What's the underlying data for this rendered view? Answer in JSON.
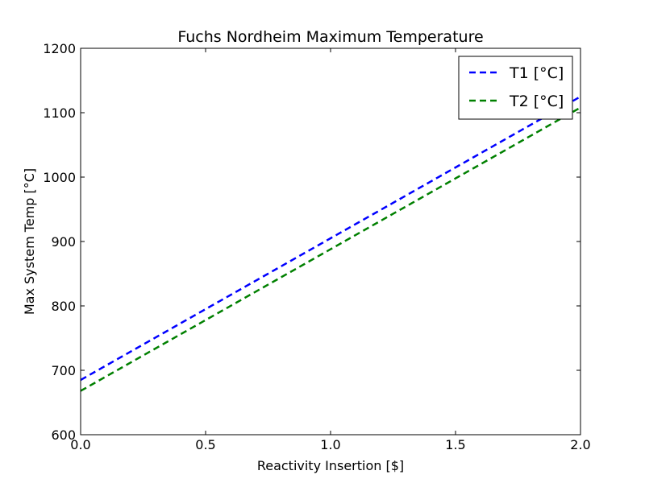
{
  "chart_data": {
    "type": "line",
    "title": "Fuchs Nordheim Maximum Temperature",
    "xlabel": "Reactivity Insertion [$]",
    "ylabel": "Max System Temp [°C]",
    "xlim": [
      0.0,
      2.0
    ],
    "ylim": [
      600,
      1200
    ],
    "xticks": [
      "0.0",
      "0.5",
      "1.0",
      "1.5",
      "2.0"
    ],
    "yticks": [
      "600",
      "700",
      "800",
      "900",
      "1000",
      "1100",
      "1200"
    ],
    "grid": false,
    "legend_position": "top-right",
    "series": [
      {
        "name": "T1 [°C]",
        "color": "#0000ff",
        "linestyle": "dashed",
        "x": [
          0.0,
          0.25,
          0.5,
          0.75,
          1.0,
          1.25,
          1.5,
          1.75,
          2.0
        ],
        "y": [
          685,
          740,
          795,
          850,
          905,
          960,
          1015,
          1070,
          1125
        ]
      },
      {
        "name": "T2 [°C]",
        "color": "#008000",
        "linestyle": "dashed",
        "x": [
          0.0,
          0.25,
          0.5,
          0.75,
          1.0,
          1.25,
          1.5,
          1.75,
          2.0
        ],
        "y": [
          668,
          723,
          778,
          833,
          888,
          943,
          998,
          1053,
          1108
        ]
      }
    ]
  }
}
